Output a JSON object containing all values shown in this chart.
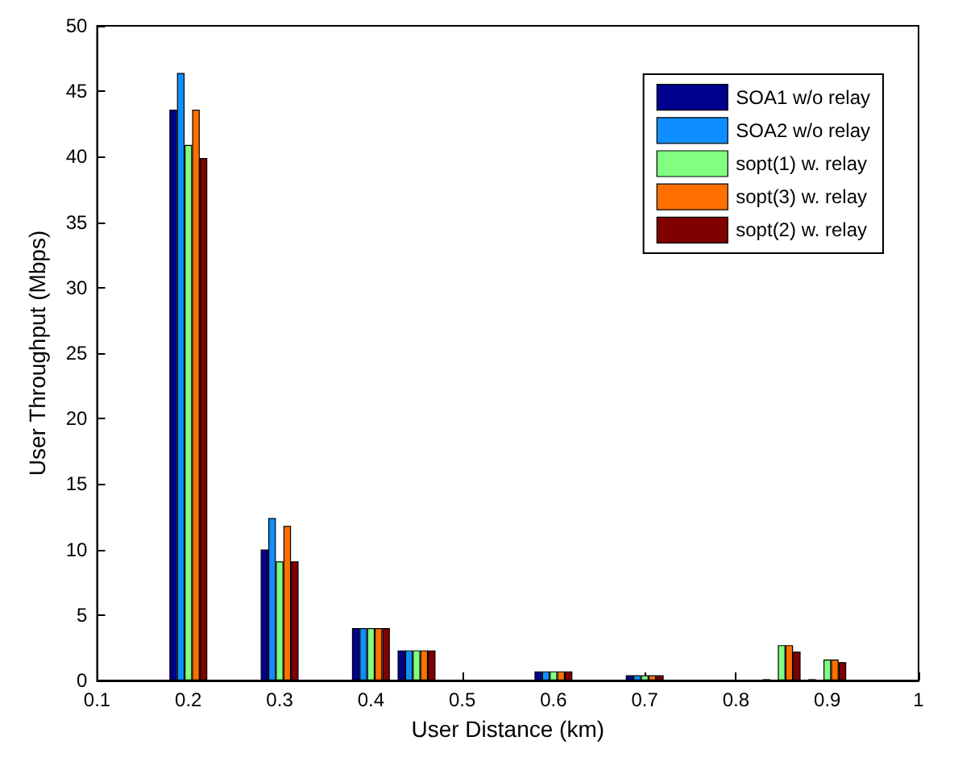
{
  "chart_data": {
    "type": "bar",
    "xlabel": "User Distance (km)",
    "ylabel": "User Throughput (Mbps)",
    "x": [
      0.2,
      0.3,
      0.4,
      0.45,
      0.6,
      0.7,
      0.85,
      0.9
    ],
    "series": [
      {
        "name": "SOA1 w/o relay",
        "color": "#00008f",
        "values": [
          43.6,
          10.0,
          4.0,
          2.3,
          0.7,
          0.4,
          0.1,
          0.1
        ]
      },
      {
        "name": "SOA2 w/o relay",
        "color": "#0f8fff",
        "values": [
          46.4,
          12.4,
          4.0,
          2.3,
          0.7,
          0.4,
          null,
          null
        ]
      },
      {
        "name": "sopt(1) w. relay",
        "color": "#80ff80",
        "values": [
          40.9,
          9.1,
          4.0,
          2.3,
          0.7,
          0.4,
          2.7,
          1.6
        ]
      },
      {
        "name": "sopt(3) w. relay",
        "color": "#ff7000",
        "values": [
          43.6,
          11.8,
          4.0,
          2.3,
          0.7,
          0.4,
          2.7,
          1.6
        ]
      },
      {
        "name": "sopt(2) w. relay",
        "color": "#800000",
        "values": [
          39.9,
          9.1,
          4.0,
          2.3,
          0.7,
          0.4,
          2.2,
          1.4
        ]
      }
    ],
    "xlim": [
      0.1,
      1
    ],
    "xticks": [
      0.1,
      0.2,
      0.3,
      0.4,
      0.5,
      0.6,
      0.7,
      0.8,
      0.9,
      1
    ],
    "ylim": [
      0,
      50
    ],
    "yticks": [
      0,
      5,
      10,
      15,
      20,
      25,
      30,
      35,
      40,
      45,
      50
    ],
    "grid": false,
    "legend": "top right"
  }
}
